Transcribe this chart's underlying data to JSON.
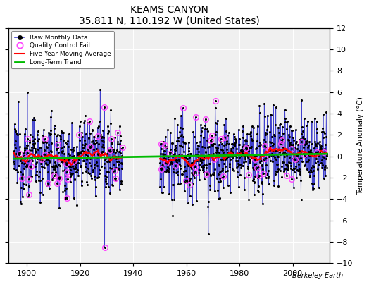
{
  "title": "KEAMS CANYON",
  "subtitle": "35.811 N, 110.192 W (United States)",
  "ylabel": "Temperature Anomaly (°C)",
  "credit": "Berkeley Earth",
  "xlim": [
    1893,
    2014
  ],
  "ylim": [
    -10,
    12
  ],
  "yticks": [
    -10,
    -8,
    -6,
    -4,
    -2,
    0,
    2,
    4,
    6,
    8,
    10,
    12
  ],
  "xticks": [
    1900,
    1920,
    1940,
    1960,
    1980,
    2000
  ],
  "background_color": "#f0f0f0",
  "raw_line_color": "#4040cc",
  "raw_dot_color": "#000000",
  "qc_color": "#ff44ff",
  "moving_avg_color": "#ff0000",
  "trend_color": "#00bb00",
  "seed": 12345,
  "gap_start": 1936,
  "gap_end": 1950,
  "data_start": 1895,
  "data_end": 2012
}
